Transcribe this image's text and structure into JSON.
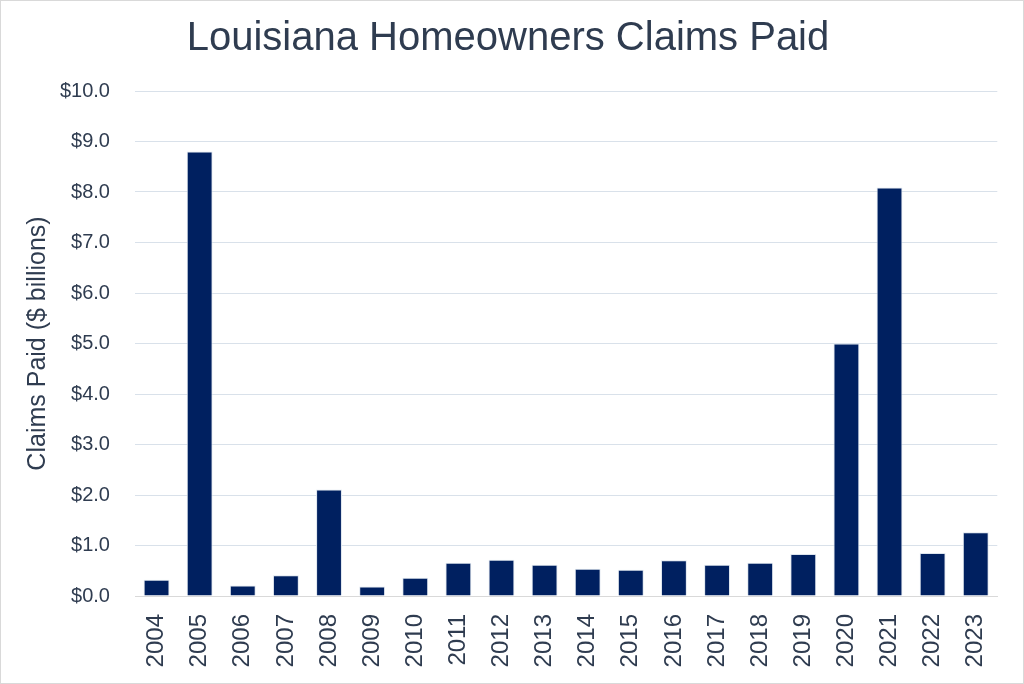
{
  "chart_data": {
    "type": "bar",
    "title": "Louisiana Homeowners Claims Paid",
    "ylabel": "Claims Paid ($ billions)",
    "categories": [
      "2004",
      "2005",
      "2006",
      "2007",
      "2008",
      "2009",
      "2010",
      "2011",
      "2012",
      "2013",
      "2014",
      "2015",
      "2016",
      "2017",
      "2018",
      "2019",
      "2020",
      "2021",
      "2022",
      "2023"
    ],
    "values": [
      0.32,
      8.8,
      0.21,
      0.41,
      2.11,
      0.19,
      0.36,
      0.66,
      0.72,
      0.62,
      0.54,
      0.52,
      0.71,
      0.62,
      0.66,
      0.83,
      5.0,
      8.09,
      0.85,
      1.26
    ],
    "color": "#002060",
    "ylim": [
      0,
      10
    ],
    "yticks": [
      {
        "value": 0,
        "label": "$0.0"
      },
      {
        "value": 1,
        "label": "$1.0"
      },
      {
        "value": 2,
        "label": "$2.0"
      },
      {
        "value": 3,
        "label": "$3.0"
      },
      {
        "value": 4,
        "label": "$4.0"
      },
      {
        "value": 5,
        "label": "$5.0"
      },
      {
        "value": 6,
        "label": "$6.0"
      },
      {
        "value": 7,
        "label": "$7.0"
      },
      {
        "value": 8,
        "label": "$8.0"
      },
      {
        "value": 9,
        "label": "$9.0"
      },
      {
        "value": 10,
        "label": "$10.0"
      }
    ],
    "grid": "y"
  }
}
